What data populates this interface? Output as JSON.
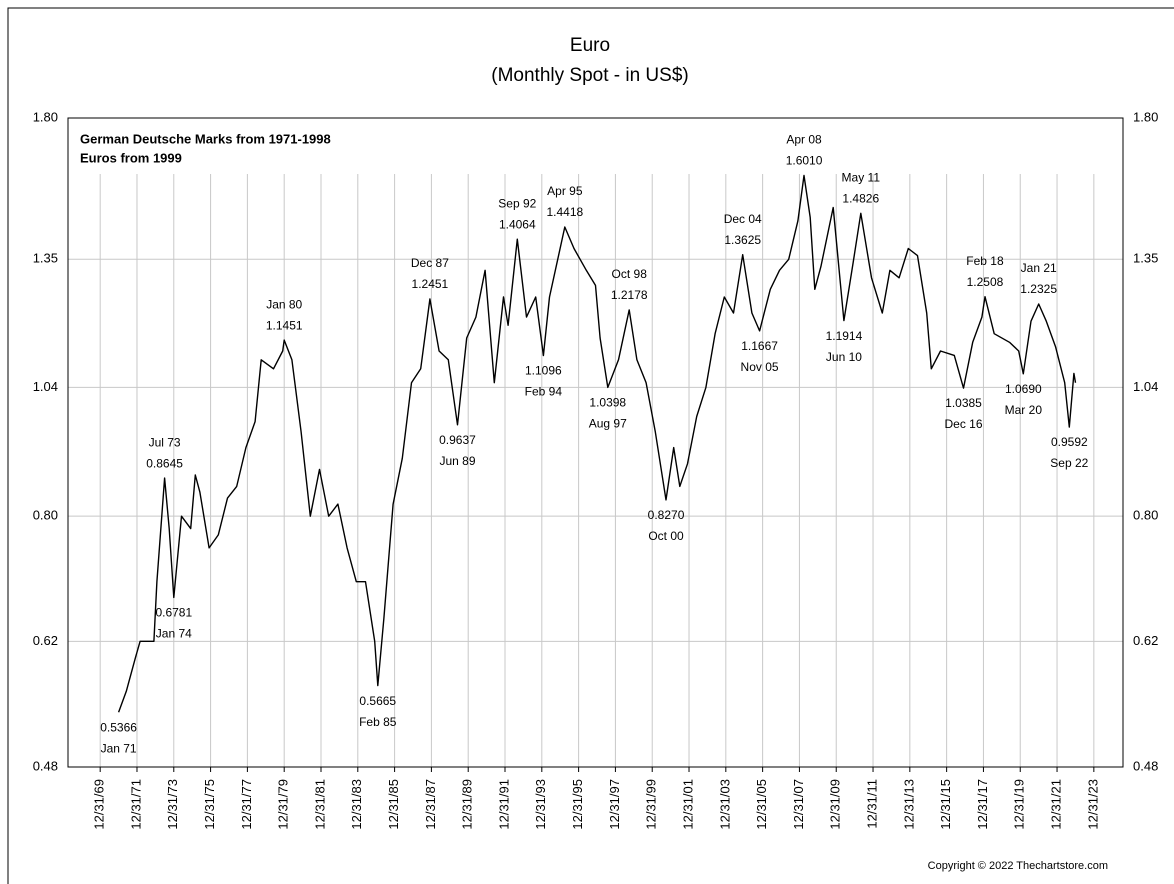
{
  "chart_data": {
    "type": "line",
    "title": "Euro",
    "subtitle": "(Monthly Spot - in US$)",
    "notes": [
      "German Deutsche Marks from 1971-1998",
      "Euros from 1999"
    ],
    "copyright": "Copyright © 2022 Thechartstore.com",
    "log_scale": true,
    "grid": true,
    "ylim": [
      0.48,
      1.8
    ],
    "yticks": [
      0.48,
      0.62,
      {
        "value": 0.8,
        "label": "0.80"
      },
      1.04,
      1.35,
      {
        "value": 1.8,
        "label": "1.80"
      }
    ],
    "xlim": [
      "1968-04-01",
      "2025-08-01"
    ],
    "xticks": [
      {
        "value": "1969-12-31",
        "label": "12/31/69"
      },
      {
        "value": "1971-12-31",
        "label": "12/31/71"
      },
      {
        "value": "1973-12-31",
        "label": "12/31/73"
      },
      {
        "value": "1975-12-31",
        "label": "12/31/75"
      },
      {
        "value": "1977-12-31",
        "label": "12/31/77"
      },
      {
        "value": "1979-12-31",
        "label": "12/31/79"
      },
      {
        "value": "1981-12-31",
        "label": "12/31/81"
      },
      {
        "value": "1983-12-31",
        "label": "12/31/83"
      },
      {
        "value": "1985-12-31",
        "label": "12/31/85"
      },
      {
        "value": "1987-12-31",
        "label": "12/31/87"
      },
      {
        "value": "1989-12-31",
        "label": "12/31/89"
      },
      {
        "value": "1991-12-31",
        "label": "12/31/91"
      },
      {
        "value": "1993-12-31",
        "label": "12/31/93"
      },
      {
        "value": "1995-12-31",
        "label": "12/31/95"
      },
      {
        "value": "1997-12-31",
        "label": "12/31/97"
      },
      {
        "value": "1999-12-31",
        "label": "12/31/99"
      },
      {
        "value": "2001-12-31",
        "label": "12/31/01"
      },
      {
        "value": "2003-12-31",
        "label": "12/31/03"
      },
      {
        "value": "2005-12-31",
        "label": "12/31/05"
      },
      {
        "value": "2007-12-31",
        "label": "12/31/07"
      },
      {
        "value": "2009-12-31",
        "label": "12/31/09"
      },
      {
        "value": "2011-12-31",
        "label": "12/31/11"
      },
      {
        "value": "2013-12-31",
        "label": "12/31/13"
      },
      {
        "value": "2015-12-31",
        "label": "12/31/15"
      },
      {
        "value": "2017-12-31",
        "label": "12/31/17"
      },
      {
        "value": "2019-12-31",
        "label": "12/31/19"
      },
      {
        "value": "2021-12-31",
        "label": "12/31/21"
      },
      {
        "value": "2023-12-31",
        "label": "12/31/23"
      }
    ],
    "x": [
      "1971-01",
      "1971-06",
      "1971-12",
      "1972-03",
      "1972-12",
      "1973-02",
      "1973-07",
      "1973-10",
      "1974-01",
      "1974-06",
      "1974-12",
      "1975-03",
      "1975-06",
      "1975-12",
      "1976-06",
      "1976-12",
      "1977-06",
      "1977-12",
      "1978-06",
      "1978-10",
      "1979-06",
      "1979-12",
      "1980-01",
      "1980-06",
      "1980-12",
      "1981-06",
      "1981-12",
      "1982-06",
      "1982-12",
      "1983-06",
      "1983-12",
      "1984-06",
      "1984-12",
      "1985-02",
      "1985-06",
      "1985-12",
      "1986-06",
      "1986-12",
      "1987-06",
      "1987-12",
      "1988-06",
      "1988-12",
      "1989-06",
      "1989-12",
      "1990-06",
      "1990-12",
      "1991-06",
      "1991-12",
      "1992-03",
      "1992-09",
      "1993-03",
      "1993-09",
      "1994-02",
      "1994-06",
      "1995-04",
      "1995-10",
      "1996-06",
      "1996-12",
      "1997-03",
      "1997-08",
      "1998-03",
      "1998-10",
      "1999-03",
      "1999-09",
      "2000-03",
      "2000-10",
      "2001-03",
      "2001-07",
      "2001-12",
      "2002-06",
      "2002-12",
      "2003-06",
      "2003-12",
      "2004-06",
      "2004-12",
      "2005-06",
      "2005-11",
      "2006-06",
      "2006-12",
      "2007-06",
      "2007-12",
      "2008-04",
      "2008-08",
      "2008-11",
      "2009-03",
      "2009-11",
      "2010-06",
      "2010-12",
      "2011-05",
      "2011-12",
      "2012-07",
      "2012-12",
      "2013-06",
      "2013-12",
      "2014-06",
      "2014-12",
      "2015-03",
      "2015-09",
      "2016-06",
      "2016-12",
      "2017-06",
      "2017-12",
      "2018-02",
      "2018-08",
      "2019-06",
      "2019-12",
      "2020-03",
      "2020-08",
      "2021-01",
      "2021-06",
      "2021-12",
      "2022-06",
      "2022-09",
      "2022-12",
      "2023-01"
    ],
    "series": [
      {
        "color": "#000000",
        "values": [
          0.5366,
          0.56,
          0.6,
          0.62,
          0.62,
          0.7,
          0.8645,
          0.78,
          0.6781,
          0.8,
          0.78,
          0.87,
          0.84,
          0.75,
          0.77,
          0.83,
          0.85,
          0.92,
          0.97,
          1.1,
          1.08,
          1.12,
          1.1451,
          1.1,
          0.95,
          0.8,
          0.88,
          0.8,
          0.82,
          0.75,
          0.7,
          0.7,
          0.62,
          0.5665,
          0.65,
          0.82,
          0.9,
          1.05,
          1.08,
          1.2451,
          1.12,
          1.1,
          0.9637,
          1.15,
          1.2,
          1.32,
          1.05,
          1.25,
          1.18,
          1.4064,
          1.2,
          1.25,
          1.1096,
          1.25,
          1.4418,
          1.38,
          1.32,
          1.28,
          1.15,
          1.0398,
          1.1,
          1.2178,
          1.1,
          1.05,
          0.95,
          0.827,
          0.92,
          0.85,
          0.89,
          0.98,
          1.04,
          1.16,
          1.25,
          1.21,
          1.3625,
          1.21,
          1.1667,
          1.27,
          1.32,
          1.35,
          1.46,
          1.601,
          1.47,
          1.27,
          1.33,
          1.5,
          1.1914,
          1.34,
          1.4826,
          1.3,
          1.21,
          1.32,
          1.3,
          1.38,
          1.36,
          1.21,
          1.08,
          1.12,
          1.11,
          1.0385,
          1.14,
          1.2,
          1.2508,
          1.16,
          1.14,
          1.12,
          1.069,
          1.19,
          1.2325,
          1.19,
          1.13,
          1.05,
          0.9592,
          1.07,
          1.05
        ]
      }
    ],
    "annotations": {
      "dates": [
        "Jan 71",
        "Jul 73",
        "Jan 74",
        "Jan 80",
        "Feb 85",
        "Dec 87",
        "Jun 89",
        "Sep 92",
        "Feb 94",
        "Apr 95",
        "Aug 97",
        "Oct 98",
        "Oct 00",
        "Dec 04",
        "Nov 05",
        "Apr 08",
        "Jun 10",
        "May 11",
        "Dec 16",
        "Feb 18",
        "Mar 20",
        "Jan 21",
        "Sep 22"
      ],
      "values": [
        0.5366,
        0.8645,
        0.6781,
        1.1451,
        0.5665,
        1.2451,
        0.9637,
        1.4064,
        1.1096,
        1.4418,
        1.0398,
        1.2178,
        0.827,
        1.3625,
        1.1667,
        1.601,
        1.1914,
        1.4826,
        1.0385,
        1.2508,
        1.069,
        1.2325,
        0.9592
      ],
      "value_labels": [
        "0.5366",
        "0.8645",
        "0.6781",
        "1.1451",
        "0.5665",
        "1.2451",
        "0.9637",
        "1.4064",
        "1.1096",
        "1.4418",
        "1.0398",
        "1.2178",
        "0.8270",
        "1.3625",
        "1.1667",
        "1.6010",
        "1.1914",
        "1.4826",
        "1.0385",
        "1.2508",
        "1.0690",
        "1.2325",
        "0.9592"
      ]
    }
  }
}
